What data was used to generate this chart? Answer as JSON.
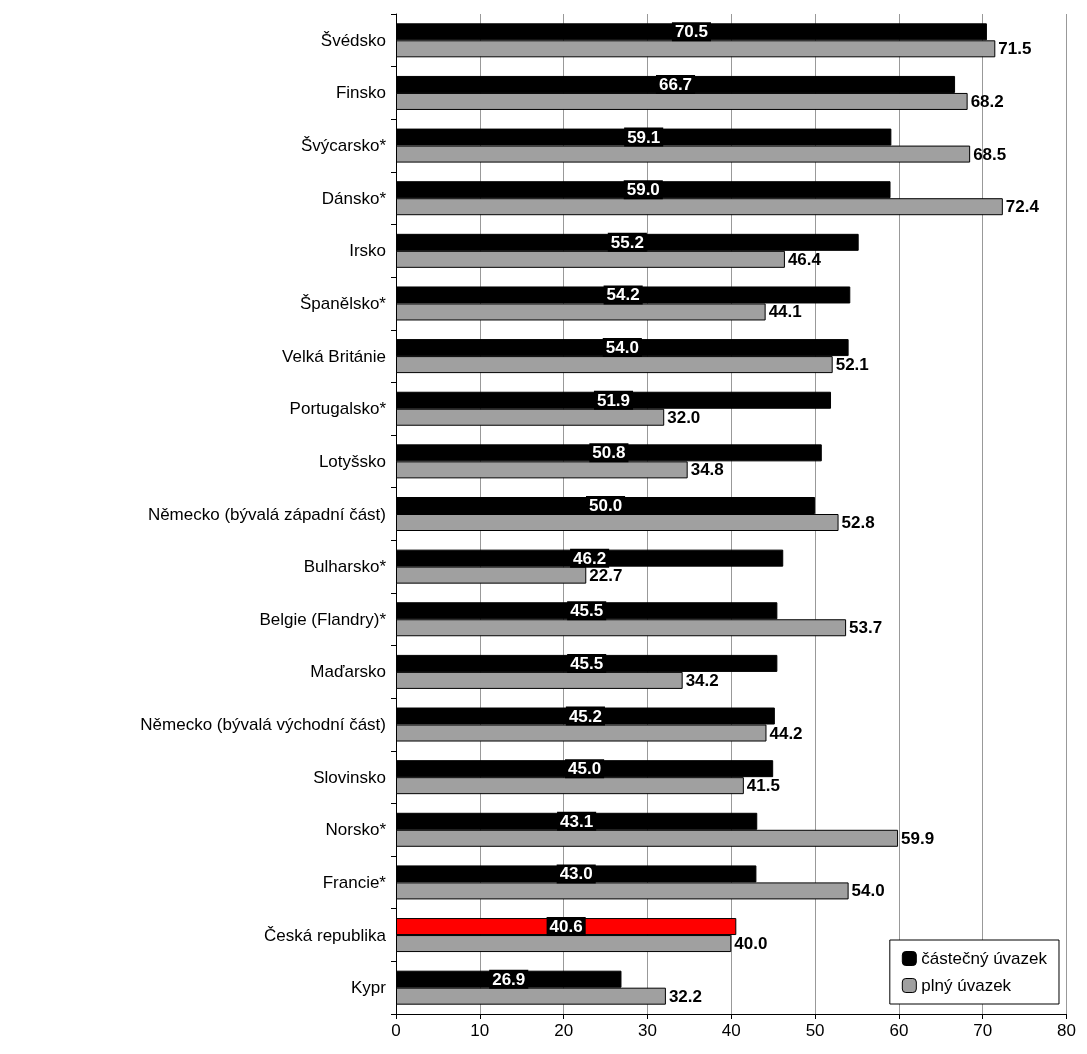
{
  "chart_data": {
    "type": "bar",
    "orientation": "horizontal",
    "categories": [
      "Švédsko",
      "Finsko",
      "Švýcarsko*",
      "Dánsko*",
      "Irsko",
      "Španělsko*",
      "Velká Británie",
      "Portugalsko*",
      "Lotyšsko",
      "Německo (bývalá západní část)",
      "Bulharsko*",
      "Belgie (Flandry)*",
      "Maďarsko",
      "Německo (bývalá východní část)",
      "Slovinsko",
      "Norsko*",
      "Francie*",
      "Česká republika",
      "Kypr"
    ],
    "series": [
      {
        "name": "částečný úvazek",
        "color": "#000000",
        "colors": [
          "#000000",
          "#000000",
          "#000000",
          "#000000",
          "#000000",
          "#000000",
          "#000000",
          "#000000",
          "#000000",
          "#000000",
          "#000000",
          "#000000",
          "#000000",
          "#000000",
          "#000000",
          "#000000",
          "#000000",
          "#ff0000",
          "#000000"
        ],
        "values": [
          70.5,
          66.7,
          59.1,
          59.0,
          55.2,
          54.2,
          54.0,
          51.9,
          50.8,
          50.0,
          46.2,
          45.5,
          45.5,
          45.2,
          45.0,
          43.1,
          43.0,
          40.6,
          26.9
        ],
        "value_labels": [
          "70.5",
          "66.7",
          "59.1",
          "59.0",
          "55.2",
          "54.2",
          "54.0",
          "51.9",
          "50.8",
          "50.0",
          "46.2",
          "45.5",
          "45.5",
          "45.2",
          "45.0",
          "43.1",
          "43.0",
          "40.6",
          "26.9"
        ]
      },
      {
        "name": "plný úvazek",
        "color": "#a0a0a0",
        "values": [
          71.5,
          68.2,
          68.5,
          72.4,
          46.4,
          44.1,
          52.1,
          32.0,
          34.8,
          52.8,
          22.7,
          53.7,
          34.2,
          44.2,
          41.5,
          59.9,
          54.0,
          40.0,
          32.2
        ],
        "value_labels": [
          "71.5",
          "68.2",
          "68.5",
          "72.4",
          "46.4",
          "44.1",
          "52.1",
          "32.0",
          "34.8",
          "52.8",
          "22.7",
          "53.7",
          "34.2",
          "44.2",
          "41.5",
          "59.9",
          "54.0",
          "40.0",
          "32.2"
        ]
      }
    ],
    "xlim": [
      0,
      80
    ],
    "xticks": [
      0,
      10,
      20,
      30,
      40,
      50,
      60,
      70,
      80
    ],
    "grid": "x",
    "legend": "bottom right"
  }
}
